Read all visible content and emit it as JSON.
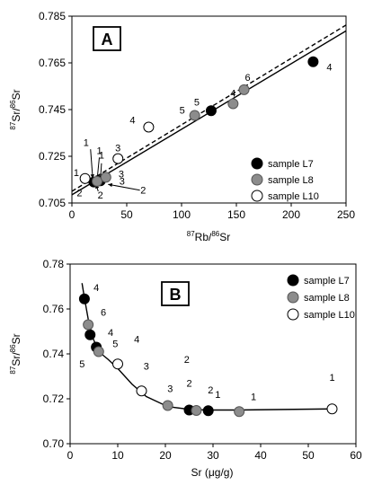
{
  "colors": {
    "sample_L7": "#000000",
    "sample_L8": "#8c8c8c",
    "sample_L10": "#ffffff"
  },
  "legend": [
    "sample L7",
    "sample L8",
    "sample L10"
  ],
  "chart_data": [
    {
      "type": "scatter",
      "panel": "A",
      "xlabel_pre": "87",
      "xlabel_mid": "Rb/",
      "xlabel_sup2": "86",
      "xlabel_post": "Sr",
      "ylabel_pre": "87",
      "ylabel_mid": "Sr/",
      "ylabel_sup2": "86",
      "ylabel_post": "Sr",
      "xlim": [
        0,
        250
      ],
      "ylim": [
        0.705,
        0.785
      ],
      "xticks": [
        0,
        50,
        100,
        150,
        200,
        250
      ],
      "yticks": [
        0.705,
        0.725,
        0.745,
        0.765,
        0.785
      ],
      "xtick_labels": [
        "0",
        "50",
        "100",
        "150",
        "200",
        "250"
      ],
      "ytick_labels": [
        "0.705",
        "0.725",
        "0.745",
        "0.765",
        "0.785"
      ],
      "lines": [
        {
          "style": "solid",
          "x": [
            0,
            250
          ],
          "y": [
            0.7085,
            0.7787
          ]
        },
        {
          "style": "dashed",
          "x": [
            0,
            250
          ],
          "y": [
            0.71,
            0.7812
          ]
        }
      ],
      "series": [
        {
          "name": "sample L7",
          "x": [
            20,
            26,
            127,
            220
          ],
          "y": [
            0.714,
            0.7145,
            0.7445,
            0.7655
          ],
          "labels": [
            "2",
            "1",
            "5",
            "4"
          ]
        },
        {
          "name": "sample L8",
          "x": [
            23,
            31,
            112,
            147,
            157
          ],
          "y": [
            0.7143,
            0.716,
            0.7425,
            0.7475,
            0.7535
          ],
          "labels": [
            "2",
            "3",
            "5",
            "4",
            "6"
          ]
        },
        {
          "name": "sample L10",
          "x": [
            12,
            42,
            70
          ],
          "y": [
            0.7155,
            0.724,
            0.7375
          ],
          "labels": [
            "1",
            "3",
            "4"
          ]
        }
      ],
      "annotations": [
        {
          "text": "1",
          "x": 4,
          "y": 0.7165
        },
        {
          "text": "1",
          "x": 13,
          "y": 0.7295
        },
        {
          "text": "1",
          "x": 25,
          "y": 0.726
        },
        {
          "text": "1",
          "x": 27,
          "y": 0.724
        },
        {
          "text": "2",
          "x": 26,
          "y": 0.707
        },
        {
          "text": "2",
          "x": 65,
          "y": 0.709
        },
        {
          "text": "3",
          "x": 45,
          "y": 0.716
        }
      ],
      "arrows": [
        {
          "from": [
            17,
            0.728
          ],
          "to": [
            19,
            0.7155
          ]
        },
        {
          "from": [
            25,
            0.7245
          ],
          "to": [
            23,
            0.715
          ]
        },
        {
          "from": [
            27,
            0.722
          ],
          "to": [
            26,
            0.715
          ]
        },
        {
          "from": [
            24,
            0.71
          ],
          "to": [
            22,
            0.713
          ]
        },
        {
          "from": [
            62,
            0.7105
          ],
          "to": [
            33,
            0.713
          ]
        }
      ]
    },
    {
      "type": "scatter",
      "panel": "B",
      "xlabel_pre": "Sr (",
      "xlabel_unit": "μg/g",
      "xlabel_post": ")",
      "ylabel_pre": "87",
      "ylabel_mid": "Sr/",
      "ylabel_sup2": "86",
      "ylabel_post": "Sr",
      "xlim": [
        0,
        60
      ],
      "ylim": [
        0.7,
        0.78
      ],
      "xticks": [
        0,
        10,
        20,
        30,
        40,
        50,
        60
      ],
      "yticks": [
        0.7,
        0.72,
        0.74,
        0.76,
        0.78
      ],
      "xtick_labels": [
        "0",
        "10",
        "20",
        "30",
        "40",
        "50",
        "60"
      ],
      "ytick_labels": [
        "0.70",
        "0.72",
        "0.74",
        "0.76",
        "0.78"
      ],
      "curve": {
        "x": [
          2.5,
          3.0,
          3.8,
          4.8,
          6.0,
          8.0,
          10.0,
          13.0,
          16.0,
          20.5,
          25.0,
          29.0,
          35.0,
          55.0
        ],
        "y": [
          0.7715,
          0.765,
          0.7555,
          0.747,
          0.741,
          0.7375,
          0.7335,
          0.7265,
          0.721,
          0.7165,
          0.7153,
          0.715,
          0.715,
          0.7155
        ]
      },
      "series": [
        {
          "name": "sample L7",
          "x": [
            3.0,
            4.2,
            5.5,
            25.0,
            29.0
          ],
          "y": [
            0.7645,
            0.7485,
            0.743,
            0.715,
            0.7147
          ]
        },
        {
          "name": "sample L8",
          "x": [
            3.8,
            6.0,
            20.5,
            26.5,
            35.5
          ],
          "y": [
            0.753,
            0.741,
            0.717,
            0.7148,
            0.7143
          ]
        },
        {
          "name": "sample L10",
          "x": [
            10.0,
            15.0,
            55.0
          ],
          "y": [
            0.7355,
            0.7235,
            0.7155
          ]
        }
      ],
      "annotations": [
        {
          "text": "4",
          "x": 5.5,
          "y": 0.768
        },
        {
          "text": "6",
          "x": 7.0,
          "y": 0.757
        },
        {
          "text": "4",
          "x": 8.5,
          "y": 0.748
        },
        {
          "text": "5",
          "x": 9.5,
          "y": 0.743
        },
        {
          "text": "5",
          "x": 2.5,
          "y": 0.734
        },
        {
          "text": "4",
          "x": 14.0,
          "y": 0.745
        },
        {
          "text": "3",
          "x": 16.0,
          "y": 0.733
        },
        {
          "text": "3",
          "x": 21.0,
          "y": 0.723
        },
        {
          "text": "2",
          "x": 24.5,
          "y": 0.736
        },
        {
          "text": "2",
          "x": 25.0,
          "y": 0.7255
        },
        {
          "text": "2",
          "x": 29.5,
          "y": 0.7225
        },
        {
          "text": "1",
          "x": 31.0,
          "y": 0.7205
        },
        {
          "text": "1",
          "x": 38.5,
          "y": 0.7195
        },
        {
          "text": "1",
          "x": 55.0,
          "y": 0.728
        }
      ]
    }
  ]
}
